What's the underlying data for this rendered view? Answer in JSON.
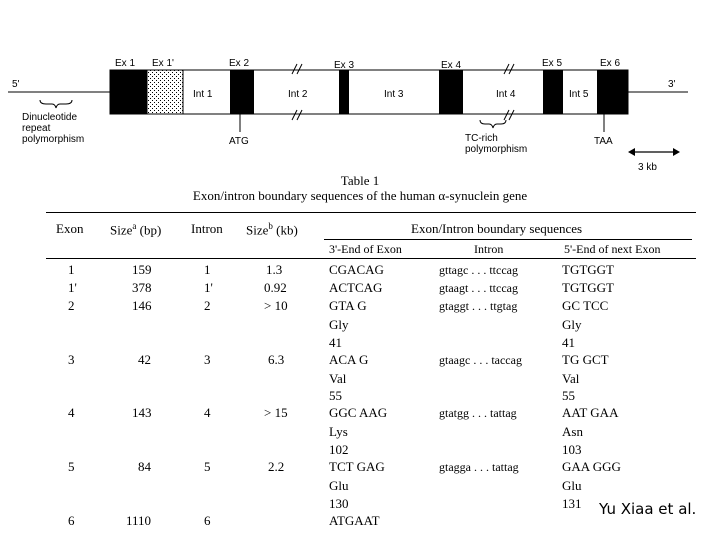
{
  "diagram": {
    "exons": [
      "Ex 1",
      "Ex 1'",
      "Ex 2",
      "Ex 3",
      "Ex 4",
      "Ex 5",
      "Ex 6"
    ],
    "introns": [
      "Int 1",
      "Int 2",
      "Int 3",
      "Int 4",
      "Int 5"
    ],
    "five_prime": "5'",
    "three_prime": "3'",
    "dinucleotide_label": [
      "Dinucleotide",
      "repeat",
      "polymorphism"
    ],
    "atg": "ATG",
    "taa": "TAA",
    "tc_label": [
      "TC-rich",
      "polymorphism"
    ],
    "scale": "3 kb"
  },
  "table": {
    "number": "Table 1",
    "title": "Exon/intron boundary sequences of the human α-synuclein gene",
    "headers": {
      "exon": "Exon",
      "size_a": "Size",
      "size_a_sup": "a",
      "size_a_unit": " (bp)",
      "intron": "Intron",
      "size_b": "Size",
      "size_b_sup": "b",
      "size_b_unit": " (kb)",
      "boundary": "Exon/Intron boundary sequences",
      "end_exon": "3'-End of Exon",
      "intron_sub": "Intron",
      "next_exon": "5'-End of next Exon"
    },
    "rows": [
      {
        "exon": "1",
        "size_bp": "159",
        "intron": "1",
        "size_kb": "1.3",
        "end3": "CGACAG",
        "intron_seq": "gttagc . . . ttccag",
        "start5": "TGTGGT"
      },
      {
        "exon": "1'",
        "size_bp": "378",
        "intron": "1'",
        "size_kb": "0.92",
        "end3": "ACTCAG",
        "intron_seq": "gtaagt . . . ttccag",
        "start5": "TGTGGT"
      },
      {
        "exon": "2",
        "size_bp": "146",
        "intron": "2",
        "size_kb": "> 10",
        "end3": "GTA G",
        "intron_seq": "gtaggt . . . ttgtag",
        "start5": "GC TCC",
        "aa3": "Gly",
        "pos3": "41",
        "aa5": "Gly",
        "pos5": "41"
      },
      {
        "exon": "3",
        "size_bp": "42",
        "intron": "3",
        "size_kb": "6.3",
        "end3": "ACA G",
        "intron_seq": "gtaagc . . . taccag",
        "start5": "TG GCT",
        "aa3": "Val",
        "pos3": "55",
        "aa5": "Val",
        "pos5": "55"
      },
      {
        "exon": "4",
        "size_bp": "143",
        "intron": "4",
        "size_kb": "> 15",
        "end3": "GGC AAG",
        "intron_seq": "gtatgg . . . tattag",
        "start5": "AAT GAA",
        "aa3": "Lys",
        "pos3": "102",
        "aa5": "Asn",
        "pos5": "103"
      },
      {
        "exon": "5",
        "size_bp": "84",
        "intron": "5",
        "size_kb": "2.2",
        "end3": "TCT GAG",
        "intron_seq": "gtagga . . . tattag",
        "start5": "GAA GGG",
        "aa3": "Glu",
        "pos3": "130",
        "aa5": "Glu",
        "pos5": "131"
      },
      {
        "exon": "6",
        "size_bp": "1110",
        "intron": "6",
        "size_kb": "",
        "end3": "ATGAAT",
        "intron_seq": "",
        "start5": ""
      }
    ]
  },
  "credit": "Yu Xiaa et al."
}
